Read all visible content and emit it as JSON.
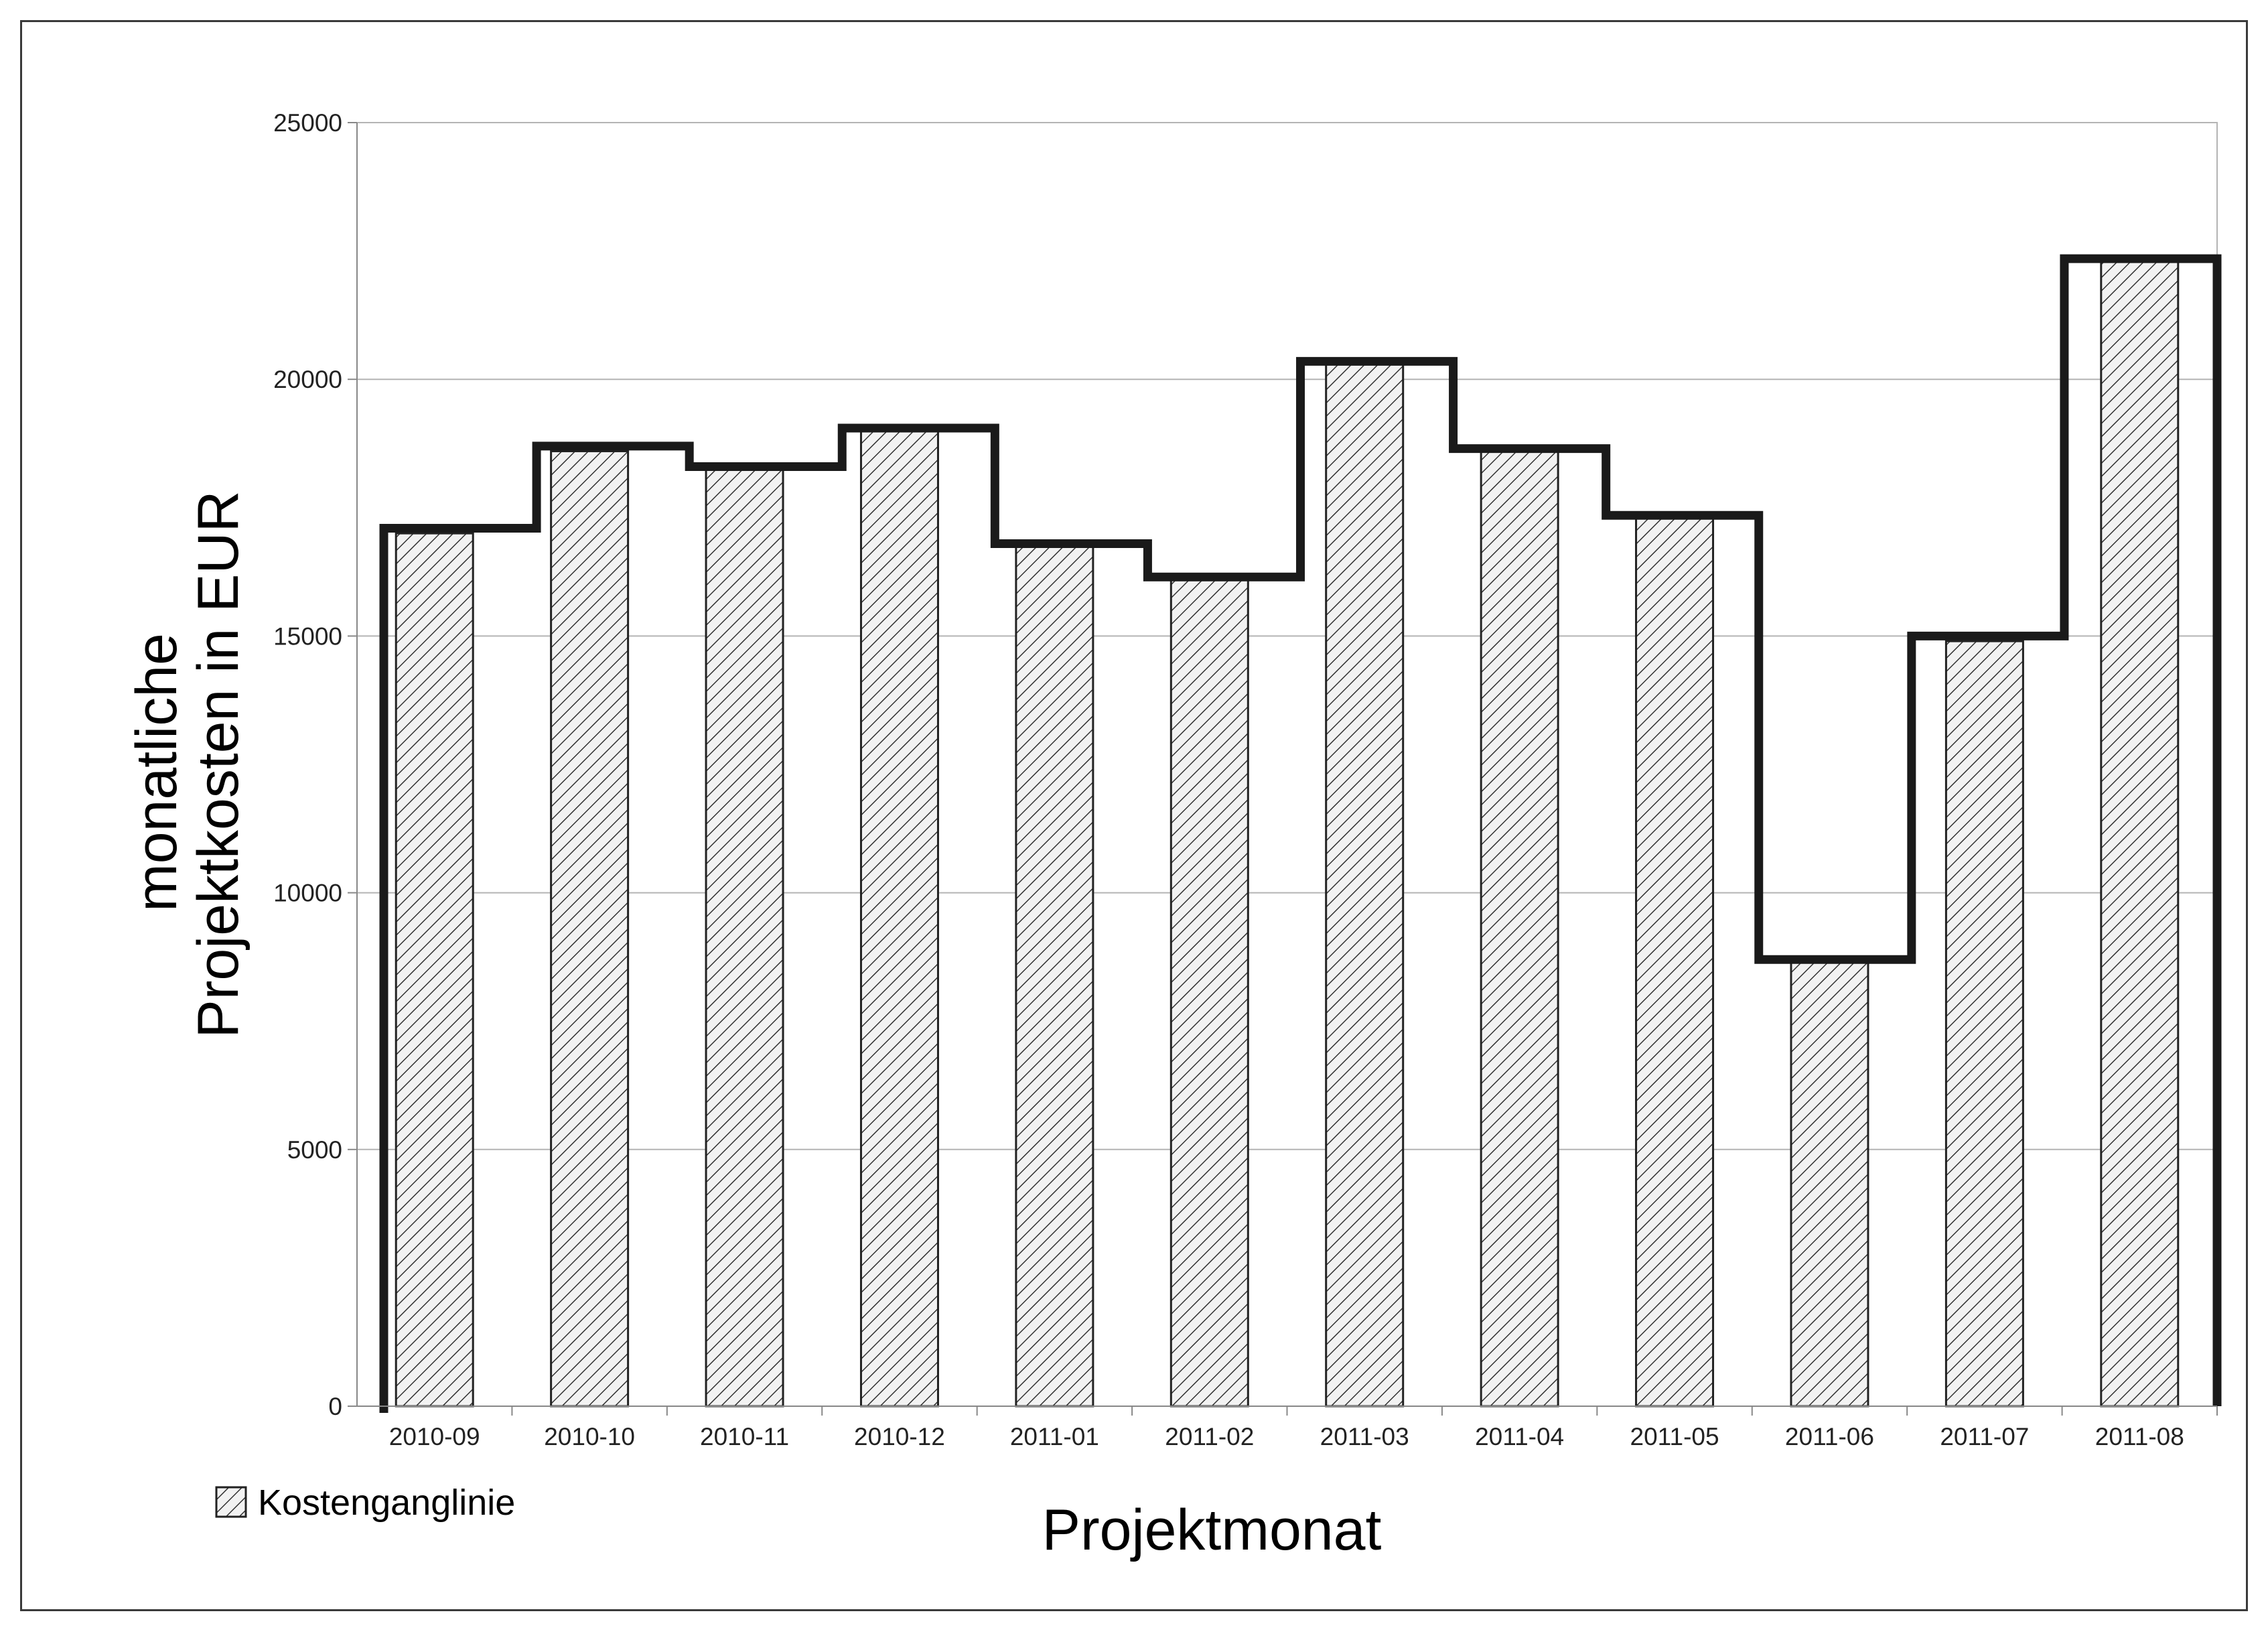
{
  "chart_data": {
    "type": "bar",
    "categories": [
      "2010-09",
      "2010-10",
      "2010-11",
      "2010-12",
      "2011-01",
      "2011-02",
      "2011-03",
      "2011-04",
      "2011-05",
      "2011-06",
      "2011-07",
      "2011-08"
    ],
    "series": [
      {
        "name": "Kostenganglinie",
        "values": [
          17000,
          18600,
          18300,
          19000,
          16800,
          16100,
          20300,
          18600,
          17300,
          8700,
          14900,
          22300
        ]
      }
    ],
    "step_line_values": [
      17100,
      18700,
      18300,
      19050,
      16800,
      16150,
      20350,
      18650,
      17350,
      8700,
      15000,
      22350
    ],
    "title": "",
    "xlabel": "Projektmonat",
    "ylabel_lines": [
      "monatliche",
      "Projektkosten in EUR"
    ],
    "ylim": [
      0,
      25000
    ],
    "yticks": [
      "0",
      "5000",
      "10000",
      "15000",
      "20000",
      "25000"
    ],
    "ytick_values": [
      0,
      5000,
      10000,
      15000,
      20000,
      25000
    ],
    "grid": true,
    "legend_position": "bottom-left",
    "colors": {
      "bar_fill": "#f2f2f2",
      "bar_hatch": "#333333",
      "bar_stroke": "#222222",
      "step_line": "#1a1a1a",
      "grid": "#b4b4b4",
      "frame": "#3a3a3a"
    }
  }
}
